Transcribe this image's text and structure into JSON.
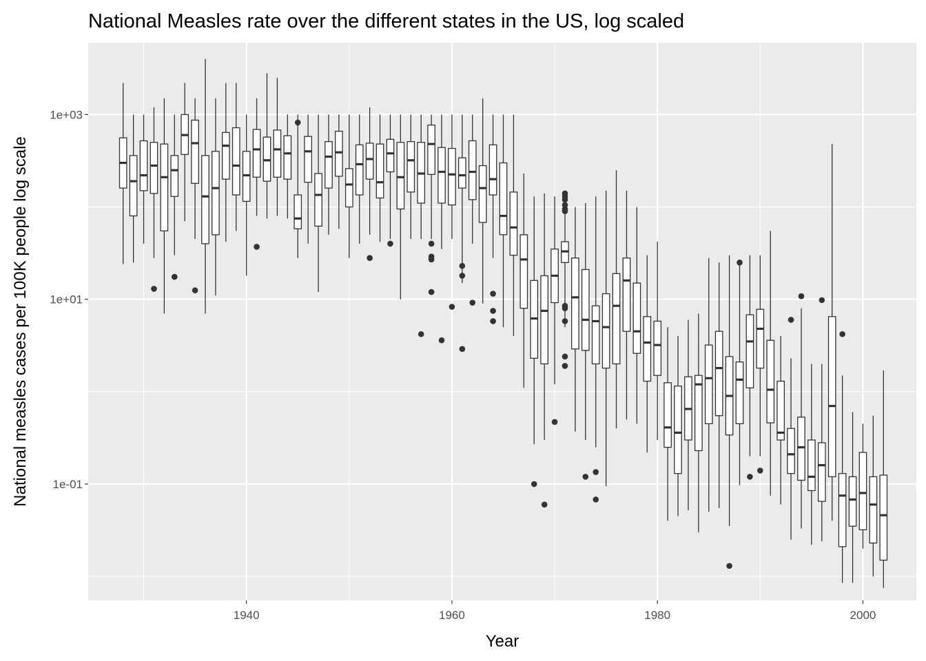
{
  "chart_data": {
    "type": "boxplot",
    "title": "National Measles rate over the different states in the US, log scaled",
    "xlabel": "Year",
    "ylabel": "National measles cases per 100K people log scale",
    "y_scale": "log10",
    "xlim": [
      1924.6,
      2005.2
    ],
    "ylim": [
      0.0055,
      6000
    ],
    "x_ticks": [
      {
        "value": 1940,
        "label": "1940"
      },
      {
        "value": 1960,
        "label": "1960"
      },
      {
        "value": 1980,
        "label": "1980"
      },
      {
        "value": 2000,
        "label": "2000"
      }
    ],
    "x_minor_ticks": [
      1930,
      1950,
      1970,
      1990
    ],
    "y_ticks": [
      {
        "value": 1000,
        "label": "1e+03"
      },
      {
        "value": 10,
        "label": "1e+01"
      },
      {
        "value": 0.1,
        "label": "1e-01"
      }
    ],
    "y_minor_ticks": [
      0.01,
      1,
      100
    ],
    "boxes": [
      {
        "year": 1928,
        "min": 24,
        "q1": 160,
        "median": 300,
        "q3": 560,
        "max": 2200,
        "outliers": []
      },
      {
        "year": 1929,
        "min": 25,
        "q1": 80,
        "median": 190,
        "q3": 360,
        "max": 1000,
        "outliers": []
      },
      {
        "year": 1930,
        "min": 40,
        "q1": 150,
        "median": 220,
        "q3": 520,
        "max": 1000,
        "outliers": []
      },
      {
        "year": 1931,
        "min": 28,
        "q1": 140,
        "median": 280,
        "q3": 500,
        "max": 1200,
        "outliers": [
          13
        ]
      },
      {
        "year": 1932,
        "min": 7,
        "q1": 55,
        "median": 210,
        "q3": 480,
        "max": 1500,
        "outliers": []
      },
      {
        "year": 1933,
        "min": 30,
        "q1": 130,
        "median": 250,
        "q3": 360,
        "max": 1000,
        "outliers": [
          17.5
        ]
      },
      {
        "year": 1934,
        "min": 70,
        "q1": 370,
        "median": 600,
        "q3": 1000,
        "max": 2200,
        "outliers": []
      },
      {
        "year": 1935,
        "min": 45,
        "q1": 180,
        "median": 490,
        "q3": 870,
        "max": 1500,
        "outliers": [
          12.5
        ]
      },
      {
        "year": 1936,
        "min": 7,
        "q1": 40,
        "median": 130,
        "q3": 360,
        "max": 4000,
        "outliers": []
      },
      {
        "year": 1937,
        "min": 11,
        "q1": 50,
        "median": 160,
        "q3": 400,
        "max": 1500,
        "outliers": []
      },
      {
        "year": 1938,
        "min": 42,
        "q1": 200,
        "median": 460,
        "q3": 640,
        "max": 2200,
        "outliers": []
      },
      {
        "year": 1939,
        "min": 55,
        "q1": 135,
        "median": 280,
        "q3": 720,
        "max": 2200,
        "outliers": []
      },
      {
        "year": 1940,
        "min": 18,
        "q1": 115,
        "median": 220,
        "q3": 400,
        "max": 1000,
        "outliers": []
      },
      {
        "year": 1941,
        "min": 80,
        "q1": 210,
        "median": 420,
        "q3": 690,
        "max": 1500,
        "outliers": [
          37
        ]
      },
      {
        "year": 1942,
        "min": 75,
        "q1": 190,
        "median": 320,
        "q3": 570,
        "max": 2800,
        "outliers": []
      },
      {
        "year": 1943,
        "min": 80,
        "q1": 210,
        "median": 420,
        "q3": 680,
        "max": 2500,
        "outliers": []
      },
      {
        "year": 1944,
        "min": 75,
        "q1": 200,
        "median": 380,
        "q3": 590,
        "max": 1000,
        "outliers": []
      },
      {
        "year": 1945,
        "min": 28,
        "q1": 58,
        "median": 75,
        "q3": 135,
        "max": 1000,
        "outliers": [
          820
        ]
      },
      {
        "year": 1946,
        "min": 40,
        "q1": 185,
        "median": 400,
        "q3": 580,
        "max": 1000,
        "outliers": []
      },
      {
        "year": 1947,
        "min": 12,
        "q1": 62,
        "median": 135,
        "q3": 230,
        "max": 1000,
        "outliers": []
      },
      {
        "year": 1948,
        "min": 50,
        "q1": 160,
        "median": 350,
        "q3": 510,
        "max": 1000,
        "outliers": []
      },
      {
        "year": 1949,
        "min": 58,
        "q1": 215,
        "median": 390,
        "q3": 660,
        "max": 1000,
        "outliers": []
      },
      {
        "year": 1950,
        "min": 28,
        "q1": 100,
        "median": 175,
        "q3": 260,
        "max": 1000,
        "outliers": []
      },
      {
        "year": 1951,
        "min": 40,
        "q1": 135,
        "median": 290,
        "q3": 470,
        "max": 1000,
        "outliers": []
      },
      {
        "year": 1952,
        "min": 50,
        "q1": 200,
        "median": 330,
        "q3": 490,
        "max": 1200,
        "outliers": [
          28
        ]
      },
      {
        "year": 1953,
        "min": 42,
        "q1": 125,
        "median": 185,
        "q3": 480,
        "max": 1000,
        "outliers": []
      },
      {
        "year": 1954,
        "min": 45,
        "q1": 240,
        "median": 380,
        "q3": 540,
        "max": 1000,
        "outliers": [
          40
        ]
      },
      {
        "year": 1955,
        "min": 10,
        "q1": 95,
        "median": 210,
        "q3": 500,
        "max": 1000,
        "outliers": []
      },
      {
        "year": 1956,
        "min": 45,
        "q1": 145,
        "median": 320,
        "q3": 510,
        "max": 1000,
        "outliers": []
      },
      {
        "year": 1957,
        "min": 45,
        "q1": 110,
        "median": 230,
        "q3": 500,
        "max": 1000,
        "outliers": [
          4.2
        ]
      },
      {
        "year": 1958,
        "min": 45,
        "q1": 225,
        "median": 480,
        "q3": 770,
        "max": 1000,
        "outliers": [
          40,
          29,
          27,
          12
        ]
      },
      {
        "year": 1959,
        "min": 35,
        "q1": 110,
        "median": 240,
        "q3": 440,
        "max": 1000,
        "outliers": [
          3.6
        ]
      },
      {
        "year": 1960,
        "min": 45,
        "q1": 105,
        "median": 225,
        "q3": 430,
        "max": 1000,
        "outliers": [
          8.3
        ]
      },
      {
        "year": 1961,
        "min": 15,
        "q1": 160,
        "median": 220,
        "q3": 340,
        "max": 1000,
        "outliers": [
          23,
          18,
          2.9
        ]
      },
      {
        "year": 1962,
        "min": 40,
        "q1": 120,
        "median": 240,
        "q3": 520,
        "max": 1000,
        "outliers": [
          9.2
        ]
      },
      {
        "year": 1963,
        "min": 9,
        "q1": 68,
        "median": 160,
        "q3": 280,
        "max": 1500,
        "outliers": []
      },
      {
        "year": 1964,
        "min": 28,
        "q1": 135,
        "median": 200,
        "q3": 470,
        "max": 1000,
        "outliers": [
          11.5,
          7.5,
          5.8
        ]
      },
      {
        "year": 1965,
        "min": 5,
        "q1": 50,
        "median": 80,
        "q3": 300,
        "max": 1000,
        "outliers": []
      },
      {
        "year": 1966,
        "min": 4,
        "q1": 30,
        "median": 60,
        "q3": 145,
        "max": 1000,
        "outliers": []
      },
      {
        "year": 1967,
        "min": 1.1,
        "q1": 8,
        "median": 27,
        "q3": 50,
        "max": 230,
        "outliers": []
      },
      {
        "year": 1968,
        "min": 0.27,
        "q1": 2.3,
        "median": 6.2,
        "q3": 16,
        "max": 130,
        "outliers": [
          0.1
        ]
      },
      {
        "year": 1969,
        "min": 0.3,
        "q1": 2,
        "median": 7.5,
        "q3": 18,
        "max": 140,
        "outliers": [
          0.06
        ]
      },
      {
        "year": 1970,
        "min": 1.2,
        "q1": 9.2,
        "median": 18,
        "q3": 35,
        "max": 130,
        "outliers": [
          0.47
        ]
      },
      {
        "year": 1971,
        "min": 5,
        "q1": 25,
        "median": 33,
        "q3": 42,
        "max": 130,
        "outliers": [
          140,
          130,
          120,
          105,
          95,
          90,
          8.5,
          8,
          5.8,
          2.4,
          1.9
        ]
      },
      {
        "year": 1972,
        "min": 0.37,
        "q1": 2.9,
        "median": 10.5,
        "q3": 28,
        "max": 100,
        "outliers": []
      },
      {
        "year": 1973,
        "min": 0.3,
        "q1": 2.8,
        "median": 6,
        "q3": 21,
        "max": 110,
        "outliers": [
          0.12
        ]
      },
      {
        "year": 1974,
        "min": 0.25,
        "q1": 2,
        "median": 5.8,
        "q3": 8.5,
        "max": 130,
        "outliers": [
          0.135,
          0.068
        ]
      },
      {
        "year": 1975,
        "min": 0.095,
        "q1": 1.8,
        "median": 5,
        "q3": 11.5,
        "max": 150,
        "outliers": []
      },
      {
        "year": 1976,
        "min": 0.4,
        "q1": 2,
        "median": 8.5,
        "q3": 19,
        "max": 250,
        "outliers": []
      },
      {
        "year": 1977,
        "min": 0.5,
        "q1": 4.5,
        "median": 16,
        "q3": 28,
        "max": 150,
        "outliers": []
      },
      {
        "year": 1978,
        "min": 0.45,
        "q1": 2.6,
        "median": 4.5,
        "q3": 15,
        "max": 100,
        "outliers": []
      },
      {
        "year": 1979,
        "min": 0.22,
        "q1": 1.3,
        "median": 3.4,
        "q3": 6.5,
        "max": 30,
        "outliers": []
      },
      {
        "year": 1980,
        "min": 0.3,
        "q1": 1.5,
        "median": 3.2,
        "q3": 5.8,
        "max": 42,
        "outliers": []
      },
      {
        "year": 1981,
        "min": 0.04,
        "q1": 0.25,
        "median": 0.41,
        "q3": 1.25,
        "max": 5,
        "outliers": []
      },
      {
        "year": 1982,
        "min": 0.045,
        "q1": 0.13,
        "median": 0.36,
        "q3": 1.15,
        "max": 4,
        "outliers": []
      },
      {
        "year": 1983,
        "min": 0.052,
        "q1": 0.3,
        "median": 0.65,
        "q3": 1.45,
        "max": 6,
        "outliers": []
      },
      {
        "year": 1984,
        "min": 0.03,
        "q1": 0.23,
        "median": 1.2,
        "q3": 1.5,
        "max": 7,
        "outliers": []
      },
      {
        "year": 1985,
        "min": 0.05,
        "q1": 0.45,
        "median": 1.4,
        "q3": 3.2,
        "max": 28,
        "outliers": []
      },
      {
        "year": 1986,
        "min": 0.055,
        "q1": 0.55,
        "median": 1.8,
        "q3": 4.5,
        "max": 25,
        "outliers": []
      },
      {
        "year": 1987,
        "min": 0.035,
        "q1": 0.34,
        "median": 0.9,
        "q3": 2.4,
        "max": 30,
        "outliers": [
          0.013
        ]
      },
      {
        "year": 1988,
        "min": 0.097,
        "q1": 0.45,
        "median": 1.35,
        "q3": 2.1,
        "max": 25,
        "outliers": [
          25
        ]
      },
      {
        "year": 1989,
        "min": 0.2,
        "q1": 1.1,
        "median": 3.5,
        "q3": 6.8,
        "max": 30,
        "outliers": [
          0.12
        ]
      },
      {
        "year": 1990,
        "min": 0.2,
        "q1": 1.8,
        "median": 4.8,
        "q3": 7.8,
        "max": 30,
        "outliers": [
          0.14
        ]
      },
      {
        "year": 1991,
        "min": 0.075,
        "q1": 0.46,
        "median": 1.05,
        "q3": 3.6,
        "max": 55,
        "outliers": []
      },
      {
        "year": 1992,
        "min": 0.06,
        "q1": 0.3,
        "median": 0.36,
        "q3": 1.3,
        "max": 4,
        "outliers": []
      },
      {
        "year": 1993,
        "min": 0.025,
        "q1": 0.13,
        "median": 0.21,
        "q3": 0.4,
        "max": 2.3,
        "outliers": [
          6
        ]
      },
      {
        "year": 1994,
        "min": 0.033,
        "q1": 0.11,
        "median": 0.25,
        "q3": 0.53,
        "max": 8,
        "outliers": [
          10.8
        ]
      },
      {
        "year": 1995,
        "min": 0.022,
        "q1": 0.085,
        "median": 0.12,
        "q3": 0.3,
        "max": 2,
        "outliers": []
      },
      {
        "year": 1996,
        "min": 0.024,
        "q1": 0.065,
        "median": 0.16,
        "q3": 0.28,
        "max": 2,
        "outliers": [
          9.8
        ]
      },
      {
        "year": 1997,
        "min": 0.04,
        "q1": 0.12,
        "median": 0.7,
        "q3": 6.5,
        "max": 480,
        "outliers": []
      },
      {
        "year": 1998,
        "min": 0.0085,
        "q1": 0.021,
        "median": 0.075,
        "q3": 0.13,
        "max": 1.5,
        "outliers": [
          4.2
        ]
      },
      {
        "year": 1999,
        "min": 0.0085,
        "q1": 0.035,
        "median": 0.068,
        "q3": 0.12,
        "max": 0.6,
        "outliers": []
      },
      {
        "year": 2000,
        "min": 0.02,
        "q1": 0.032,
        "median": 0.08,
        "q3": 0.22,
        "max": 0.45,
        "outliers": []
      },
      {
        "year": 2001,
        "min": 0.01,
        "q1": 0.023,
        "median": 0.06,
        "q3": 0.12,
        "max": 0.55,
        "outliers": []
      },
      {
        "year": 2002,
        "min": 0.0075,
        "q1": 0.015,
        "median": 0.046,
        "q3": 0.125,
        "max": 1.7,
        "outliers": []
      }
    ]
  }
}
